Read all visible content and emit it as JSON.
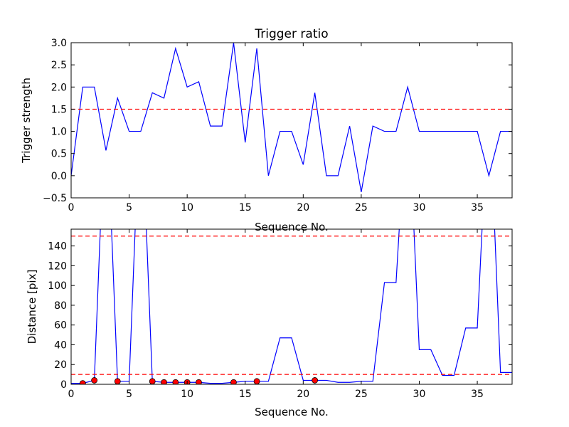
{
  "chart_data": [
    {
      "type": "line",
      "title": "Trigger ratio",
      "xlabel": "Sequence No.",
      "ylabel": "Trigger strength",
      "xlim": [
        0,
        38
      ],
      "ylim": [
        -0.5,
        3.0
      ],
      "xticks": [
        0,
        5,
        10,
        15,
        20,
        25,
        30,
        35
      ],
      "yticks": [
        -0.5,
        0.0,
        0.5,
        1.0,
        1.5,
        2.0,
        2.5,
        3.0
      ],
      "ytick_labels": [
        "−0.5",
        "0.0",
        "0.5",
        "1.0",
        "1.5",
        "2.0",
        "2.5",
        "3.0"
      ],
      "grid": false,
      "series": [
        {
          "color": "#0000ff",
          "x": [
            0,
            1,
            2,
            3,
            4,
            5,
            6,
            7,
            8,
            9,
            10,
            11,
            12,
            13,
            14,
            15,
            16,
            17,
            18,
            19,
            20,
            21,
            22,
            23,
            24,
            25,
            26,
            27,
            28,
            29,
            30,
            31,
            32,
            33,
            34,
            35,
            36,
            37,
            38
          ],
          "y": [
            0.0,
            2.0,
            2.0,
            0.57,
            1.75,
            1.0,
            1.0,
            1.87,
            1.75,
            2.87,
            2.0,
            2.12,
            1.12,
            1.12,
            3.0,
            0.75,
            2.87,
            0.0,
            1.0,
            1.0,
            0.25,
            1.87,
            0.0,
            0.0,
            1.12,
            -0.37,
            1.12,
            1.0,
            1.0,
            2.0,
            1.0,
            1.0,
            1.0,
            1.0,
            1.0,
            1.0,
            0.0,
            1.0,
            1.0
          ]
        }
      ],
      "hlines": [
        {
          "y": 1.5,
          "color": "#ff0000",
          "style": "dashed"
        }
      ]
    },
    {
      "type": "line",
      "title": "",
      "xlabel": "Sequence No.",
      "ylabel": "Distance [pix]",
      "xlim": [
        0,
        38
      ],
      "ylim": [
        0,
        157
      ],
      "xticks": [
        0,
        5,
        10,
        15,
        20,
        25,
        30,
        35
      ],
      "yticks": [
        0,
        20,
        40,
        60,
        80,
        100,
        120,
        140
      ],
      "grid": false,
      "series": [
        {
          "color": "#0000ff",
          "x": [
            0,
            1,
            2,
            3,
            4,
            5,
            6,
            7,
            8,
            9,
            10,
            11,
            12,
            13,
            14,
            15,
            16,
            17,
            18,
            19,
            20,
            21,
            22,
            23,
            24,
            25,
            26,
            27,
            28,
            29,
            30,
            31,
            32,
            33,
            34,
            35,
            36,
            37,
            38
          ],
          "y": [
            1,
            1,
            4,
            300,
            3,
            3,
            300,
            3,
            2,
            2,
            2,
            2,
            1,
            1,
            2,
            3,
            3,
            3,
            47,
            47,
            4,
            4,
            4,
            2,
            2,
            3,
            3,
            103,
            103,
            300,
            35,
            35,
            9,
            9,
            57,
            57,
            300,
            12,
            12
          ]
        }
      ],
      "markers": {
        "color": "#ff0000",
        "x": [
          1,
          2,
          4,
          7,
          8,
          9,
          10,
          11,
          14,
          16,
          21
        ],
        "y": [
          1,
          4,
          3,
          3,
          2,
          2,
          2,
          2,
          2,
          3,
          4
        ]
      },
      "hlines": [
        {
          "y": 150,
          "color": "#ff0000",
          "style": "dashed"
        },
        {
          "y": 10,
          "color": "#ff0000",
          "style": "dashed"
        }
      ]
    }
  ]
}
